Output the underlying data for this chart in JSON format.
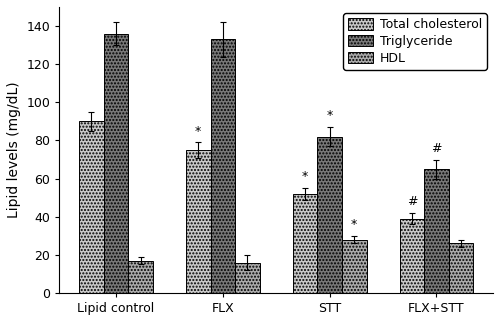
{
  "groups": [
    "Lipid control",
    "FLX",
    "STT",
    "FLX+STT"
  ],
  "series": {
    "Total cholesterol": {
      "values": [
        90,
        75,
        52,
        39
      ],
      "errors": [
        5,
        4,
        3,
        3
      ],
      "color": "#c8c8c8",
      "hatch": ".....",
      "annotations": [
        null,
        "*",
        "*",
        "#"
      ]
    },
    "Triglyceride": {
      "values": [
        136,
        133,
        82,
        65
      ],
      "errors": [
        6,
        9,
        5,
        5
      ],
      "color": "#787878",
      "hatch": ".....",
      "annotations": [
        null,
        null,
        "*",
        "#"
      ]
    },
    "HDL": {
      "values": [
        17,
        16,
        28,
        26
      ],
      "errors": [
        2,
        4,
        2,
        2
      ],
      "color": "#aaaaaa",
      "hatch": ".....",
      "annotations": [
        null,
        null,
        "*",
        null
      ]
    }
  },
  "ylabel": "Lipid levels (mg/dL)",
  "ylim": [
    0,
    150
  ],
  "yticks": [
    0,
    20,
    40,
    60,
    80,
    100,
    120,
    140
  ],
  "bar_width": 0.23,
  "legend_labels": [
    "Total cholesterol",
    "Triglyceride",
    "HDL"
  ],
  "annotation_fontsize": 9,
  "axis_fontsize": 10,
  "tick_fontsize": 9,
  "legend_fontsize": 9
}
